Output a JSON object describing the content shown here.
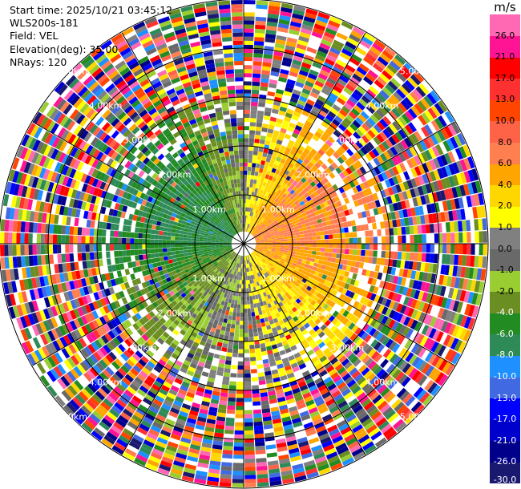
{
  "header": {
    "start_time": "Start time: 2025/10/21 03:45:12",
    "instrument": "WLS200s-181",
    "field": "Field: VEL",
    "elevation": "Elevation(deg): 35.00",
    "nrays": "NRays: 120"
  },
  "colorbar": {
    "unit": "m/s",
    "bins": [
      {
        "label": "-30.0",
        "color": "#191970"
      },
      {
        "label": "-26.0",
        "color": "#00008b"
      },
      {
        "label": "-21.0",
        "color": "#0000cd"
      },
      {
        "label": "-17.0",
        "color": "#0000ff"
      },
      {
        "label": "-13.0",
        "color": "#4169e1"
      },
      {
        "label": "-10.0",
        "color": "#1e90ff"
      },
      {
        "label": "-8.0",
        "color": "#2e8b57"
      },
      {
        "label": "-6.0",
        "color": "#228b22"
      },
      {
        "label": "-4.0",
        "color": "#6b8e23"
      },
      {
        "label": "-2.0",
        "color": "#9acd32"
      },
      {
        "label": "-1.0",
        "color": "#696969"
      },
      {
        "label": "0.0",
        "color": "#808080"
      },
      {
        "label": "1.0",
        "color": "#ffff00"
      },
      {
        "label": "2.0",
        "color": "#ffd700"
      },
      {
        "label": "4.0",
        "color": "#ffa500"
      },
      {
        "label": "6.0",
        "color": "#ff7f50"
      },
      {
        "label": "8.0",
        "color": "#ff6347"
      },
      {
        "label": "10.0",
        "color": "#ff4500"
      },
      {
        "label": "13.0",
        "color": "#ff3030"
      },
      {
        "label": "17.0",
        "color": "#ff0000"
      },
      {
        "label": "21.0",
        "color": "#ff1493"
      },
      {
        "label": "26.0",
        "color": "#ff69b4"
      }
    ],
    "top_label": "26.0"
  },
  "chart_data": {
    "type": "heatmap",
    "plot_kind": "radar PPI (polar velocity display)",
    "field": "VEL",
    "nrays": 120,
    "range_rings_km": [
      1.0,
      2.0,
      3.0,
      4.0,
      5.0
    ],
    "ring_labels": [
      "1.00km",
      "2.00km",
      "3.00km",
      "4.00km",
      "5.00km"
    ],
    "spoke_angles_deg": [
      0,
      30,
      60,
      90,
      120,
      150,
      180,
      210,
      240,
      270,
      300,
      330
    ],
    "max_range_km": 5.0,
    "velocity_range_ms": [
      -30.0,
      26.0
    ],
    "pattern": "near-range: positive velocities (yellow/orange/red) toward east and north-east and south, negative (green/blue) toward west and south-west; beyond ~3 km noisy multicolor returns"
  }
}
